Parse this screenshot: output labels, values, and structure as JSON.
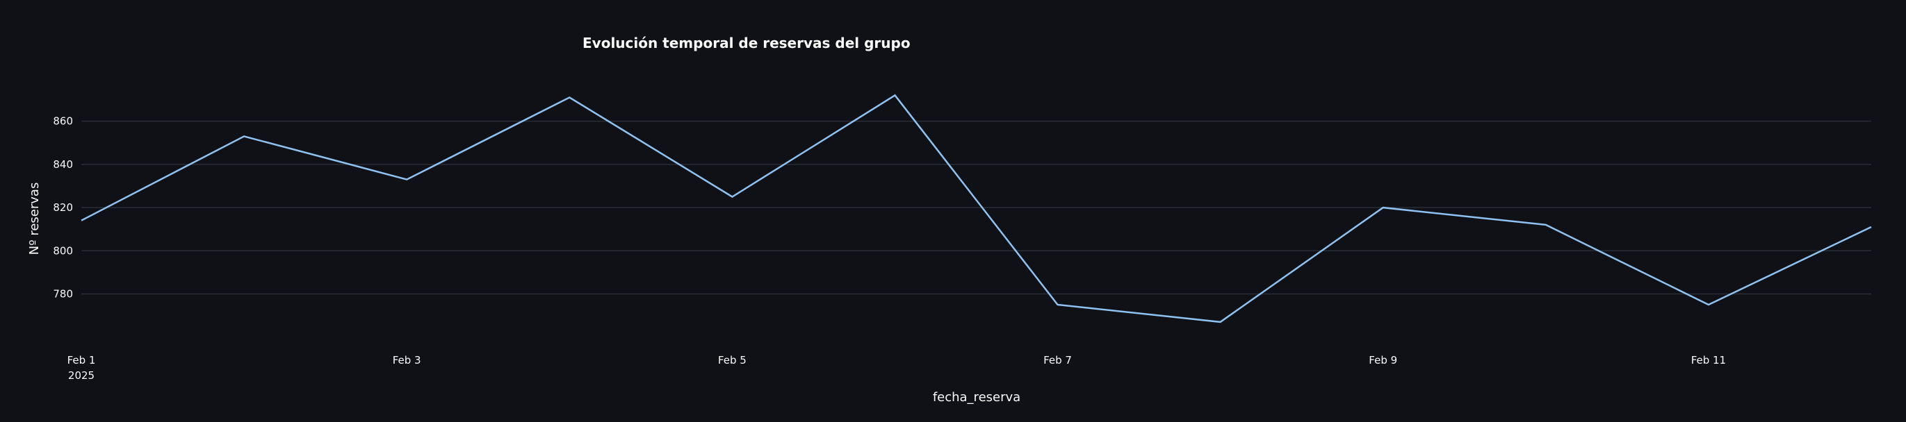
{
  "chart_data": {
    "type": "line",
    "title": "Evolución temporal de reservas del grupo",
    "xlabel": "fecha_reserva",
    "ylabel": "Nº reservas",
    "x": [
      "2025-02-01",
      "2025-02-02",
      "2025-02-03",
      "2025-02-04",
      "2025-02-05",
      "2025-02-06",
      "2025-02-07",
      "2025-02-08",
      "2025-02-09",
      "2025-02-10",
      "2025-02-11",
      "2025-02-12"
    ],
    "series": [
      {
        "name": "",
        "values": [
          814,
          853,
          833,
          871,
          825,
          872,
          775,
          767,
          820,
          812,
          775,
          811
        ]
      }
    ],
    "x_ticks": [
      {
        "x": "2025-02-01",
        "label": "Feb 1",
        "sublabel": "2025"
      },
      {
        "x": "2025-02-03",
        "label": "Feb 3",
        "sublabel": ""
      },
      {
        "x": "2025-02-05",
        "label": "Feb 5",
        "sublabel": ""
      },
      {
        "x": "2025-02-07",
        "label": "Feb 7",
        "sublabel": ""
      },
      {
        "x": "2025-02-09",
        "label": "Feb 9",
        "sublabel": ""
      },
      {
        "x": "2025-02-11",
        "label": "Feb 11",
        "sublabel": ""
      }
    ],
    "y_ticks": [
      780,
      800,
      820,
      840,
      860
    ],
    "ylim": [
      757,
      884
    ],
    "xlim": [
      "2025-02-01",
      "2025-02-12"
    ],
    "grid": true,
    "line_color": "#8fc2f0",
    "grid_color": "#2a2d36",
    "background_color": "#0f1117",
    "text_color": "#fafafa"
  }
}
